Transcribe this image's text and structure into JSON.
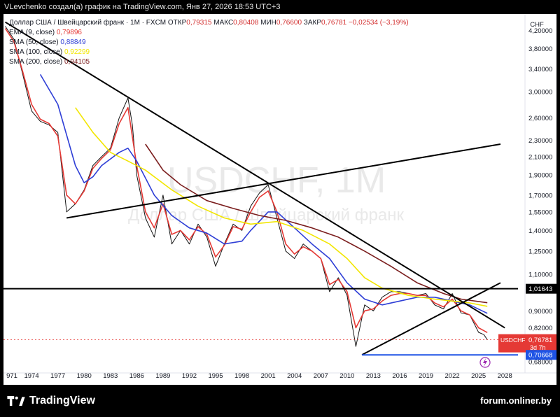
{
  "header": {
    "attribution": "VLevchenko создал(а) график на TradingView.com, Янв 27, 2026 18:53 UTC+3"
  },
  "legend": {
    "instrument": "Доллар США / Швейцарский франк · 1М · FXCM",
    "ohlc": [
      {
        "key": "ОТКР",
        "value": "0,79315"
      },
      {
        "key": "МАКС",
        "value": "0,80408"
      },
      {
        "key": "МИН",
        "value": "0,76600"
      },
      {
        "key": "ЗАКР",
        "value": "0,76781"
      }
    ],
    "change": "−0,02534 (−3,19%)",
    "indicators": [
      {
        "label": "EMA (9, close)",
        "value": "0,79896",
        "color": "#e53935"
      },
      {
        "label": "SMA (50, close)",
        "value": "0,88849",
        "color": "#2f3fd6"
      },
      {
        "label": "SMA (100, close)",
        "value": "0,92299",
        "color": "#f2e600"
      },
      {
        "label": "SMA (200, close)",
        "value": "0,94105",
        "color": "#7b1e1e"
      }
    ]
  },
  "watermark": {
    "symbol": "USDCHF, 1M",
    "name": "Доллар США / Швейцарский франк"
  },
  "price_scale": {
    "currency": "CHF",
    "ticks": [
      "4,20000",
      "3,80000",
      "3,40000",
      "3,00000",
      "2,60000",
      "2,30000",
      "2,10000",
      "1,90000",
      "1,70000",
      "1,55000",
      "1,40000",
      "1,25000",
      "1,10000",
      "0,90000",
      "0,82000",
      "0,68000"
    ],
    "level_label": "1,01643",
    "last_price_label": "0,76781",
    "countdown": "3d 7h",
    "symbol_badge": "USDCHF",
    "support_label": "0,70668"
  },
  "time_scale": {
    "ticks": [
      "971",
      "1974",
      "1977",
      "1980",
      "1983",
      "1986",
      "1989",
      "1992",
      "1995",
      "1998",
      "2001",
      "2004",
      "2007",
      "2010",
      "2013",
      "2016",
      "2019",
      "2022",
      "2025",
      "2028"
    ]
  },
  "footer": {
    "brand": "TradingView",
    "site": "forum.onliner.by"
  },
  "chart_data": {
    "type": "line",
    "title": "Доллар США / Швейцарский франк · 1М · FXCM",
    "y_scale": "log",
    "ylim": [
      0.66,
      4.6
    ],
    "xlim": [
      1970.8,
      2029.5
    ],
    "series": [
      {
        "name": "USDCHF",
        "color": "#141414",
        "points": [
          [
            1971,
            4.3
          ],
          [
            1972,
            4.0
          ],
          [
            1973,
            3.3
          ],
          [
            1974,
            2.7
          ],
          [
            1975,
            2.55
          ],
          [
            1976,
            2.5
          ],
          [
            1977,
            2.4
          ],
          [
            1978,
            1.55
          ],
          [
            1979,
            1.62
          ],
          [
            1980,
            1.75
          ],
          [
            1981,
            2.0
          ],
          [
            1982,
            2.1
          ],
          [
            1983,
            2.2
          ],
          [
            1984,
            2.6
          ],
          [
            1985,
            2.9
          ],
          [
            1985.5,
            2.5
          ],
          [
            1986,
            1.9
          ],
          [
            1987,
            1.5
          ],
          [
            1988,
            1.35
          ],
          [
            1989,
            1.7
          ],
          [
            1990,
            1.3
          ],
          [
            1991,
            1.4
          ],
          [
            1992,
            1.3
          ],
          [
            1993,
            1.45
          ],
          [
            1994,
            1.35
          ],
          [
            1995,
            1.15
          ],
          [
            1996,
            1.3
          ],
          [
            1997,
            1.45
          ],
          [
            1998,
            1.4
          ],
          [
            1999,
            1.6
          ],
          [
            2000,
            1.72
          ],
          [
            2001,
            1.8
          ],
          [
            2002,
            1.5
          ],
          [
            2003,
            1.25
          ],
          [
            2004,
            1.2
          ],
          [
            2005,
            1.3
          ],
          [
            2006,
            1.25
          ],
          [
            2007,
            1.2
          ],
          [
            2008,
            1.0
          ],
          [
            2009,
            1.08
          ],
          [
            2010,
            0.98
          ],
          [
            2011,
            0.74
          ],
          [
            2012,
            0.93
          ],
          [
            2013,
            0.9
          ],
          [
            2014,
            0.97
          ],
          [
            2015,
            1.0
          ],
          [
            2016,
            1.0
          ],
          [
            2017,
            0.99
          ],
          [
            2018,
            0.98
          ],
          [
            2019,
            0.99
          ],
          [
            2020,
            0.93
          ],
          [
            2021,
            0.91
          ],
          [
            2022,
            0.99
          ],
          [
            2023,
            0.89
          ],
          [
            2024,
            0.88
          ],
          [
            2025,
            0.8
          ],
          [
            2025.6,
            0.79
          ],
          [
            2026.0,
            0.768
          ]
        ]
      },
      {
        "name": "EMA (9, close)",
        "color": "#e53935",
        "points": [
          [
            1971,
            4.25
          ],
          [
            1972,
            3.95
          ],
          [
            1973,
            3.35
          ],
          [
            1974,
            2.8
          ],
          [
            1975,
            2.58
          ],
          [
            1976,
            2.52
          ],
          [
            1977,
            2.35
          ],
          [
            1978,
            1.7
          ],
          [
            1979,
            1.62
          ],
          [
            1980,
            1.74
          ],
          [
            1981,
            1.97
          ],
          [
            1982,
            2.08
          ],
          [
            1983,
            2.18
          ],
          [
            1984,
            2.52
          ],
          [
            1985,
            2.75
          ],
          [
            1986,
            2.0
          ],
          [
            1987,
            1.55
          ],
          [
            1988,
            1.42
          ],
          [
            1989,
            1.62
          ],
          [
            1990,
            1.37
          ],
          [
            1991,
            1.4
          ],
          [
            1992,
            1.33
          ],
          [
            1993,
            1.43
          ],
          [
            1994,
            1.37
          ],
          [
            1995,
            1.21
          ],
          [
            1996,
            1.29
          ],
          [
            1997,
            1.43
          ],
          [
            1998,
            1.41
          ],
          [
            1999,
            1.55
          ],
          [
            2000,
            1.68
          ],
          [
            2001,
            1.74
          ],
          [
            2002,
            1.55
          ],
          [
            2003,
            1.3
          ],
          [
            2004,
            1.23
          ],
          [
            2005,
            1.28
          ],
          [
            2006,
            1.25
          ],
          [
            2007,
            1.2
          ],
          [
            2008,
            1.04
          ],
          [
            2009,
            1.07
          ],
          [
            2010,
            1.0
          ],
          [
            2011,
            0.82
          ],
          [
            2012,
            0.9
          ],
          [
            2013,
            0.91
          ],
          [
            2014,
            0.95
          ],
          [
            2015,
            0.98
          ],
          [
            2016,
            0.99
          ],
          [
            2017,
            0.99
          ],
          [
            2018,
            0.98
          ],
          [
            2019,
            0.98
          ],
          [
            2020,
            0.94
          ],
          [
            2021,
            0.92
          ],
          [
            2022,
            0.96
          ],
          [
            2023,
            0.9
          ],
          [
            2024,
            0.88
          ],
          [
            2025,
            0.82
          ],
          [
            2026.0,
            0.799
          ]
        ]
      },
      {
        "name": "SMA (50, close)",
        "color": "#2f3fd6",
        "points": [
          [
            1975,
            3.3
          ],
          [
            1977,
            2.8
          ],
          [
            1979,
            2.0
          ],
          [
            1980,
            1.82
          ],
          [
            1981,
            1.88
          ],
          [
            1982,
            2.0
          ],
          [
            1984,
            2.15
          ],
          [
            1985,
            2.2
          ],
          [
            1986,
            2.05
          ],
          [
            1988,
            1.7
          ],
          [
            1990,
            1.52
          ],
          [
            1992,
            1.42
          ],
          [
            1994,
            1.38
          ],
          [
            1996,
            1.3
          ],
          [
            1998,
            1.32
          ],
          [
            1999,
            1.4
          ],
          [
            2001,
            1.55
          ],
          [
            2002,
            1.55
          ],
          [
            2004,
            1.42
          ],
          [
            2006,
            1.3
          ],
          [
            2008,
            1.2
          ],
          [
            2010,
            1.05
          ],
          [
            2012,
            0.96
          ],
          [
            2014,
            0.93
          ],
          [
            2016,
            0.95
          ],
          [
            2018,
            0.97
          ],
          [
            2020,
            0.97
          ],
          [
            2022,
            0.95
          ],
          [
            2024,
            0.93
          ],
          [
            2026.0,
            0.888
          ]
        ]
      },
      {
        "name": "SMA (100, close)",
        "color": "#f2e600",
        "points": [
          [
            1979,
            2.75
          ],
          [
            1981,
            2.4
          ],
          [
            1983,
            2.15
          ],
          [
            1985,
            2.05
          ],
          [
            1987,
            1.95
          ],
          [
            1990,
            1.75
          ],
          [
            1993,
            1.6
          ],
          [
            1996,
            1.5
          ],
          [
            1999,
            1.45
          ],
          [
            2002,
            1.47
          ],
          [
            2005,
            1.4
          ],
          [
            2008,
            1.3
          ],
          [
            2010,
            1.2
          ],
          [
            2012,
            1.08
          ],
          [
            2014,
            1.02
          ],
          [
            2017,
            0.98
          ],
          [
            2020,
            0.96
          ],
          [
            2022,
            0.95
          ],
          [
            2024,
            0.94
          ],
          [
            2026.0,
            0.923
          ]
        ]
      },
      {
        "name": "SMA (200, close)",
        "color": "#7b1e1e",
        "points": [
          [
            1987,
            2.25
          ],
          [
            1989,
            1.95
          ],
          [
            1991,
            1.8
          ],
          [
            1994,
            1.65
          ],
          [
            1997,
            1.58
          ],
          [
            2000,
            1.52
          ],
          [
            2003,
            1.48
          ],
          [
            2006,
            1.42
          ],
          [
            2009,
            1.35
          ],
          [
            2012,
            1.25
          ],
          [
            2015,
            1.15
          ],
          [
            2018,
            1.05
          ],
          [
            2021,
            0.99
          ],
          [
            2023,
            0.96
          ],
          [
            2026.0,
            0.941
          ]
        ]
      }
    ],
    "trendlines": [
      {
        "name": "long-term downtrend",
        "from": [
          1971,
          4.4
        ],
        "to": [
          2028.0,
          0.82
        ]
      },
      {
        "name": "long-term uptrend",
        "from": [
          1978,
          1.5
        ],
        "to": [
          2027.5,
          2.25
        ]
      },
      {
        "name": "support rising",
        "from": [
          2011.7,
          0.707
        ],
        "to": [
          2027.5,
          1.05
        ]
      },
      {
        "name": "horizontal level",
        "from": [
          1970.8,
          1.01643
        ],
        "to": [
          2029.5,
          1.01643
        ]
      },
      {
        "name": "support horizontal",
        "from": [
          2011.7,
          0.70668
        ],
        "to": [
          2029.5,
          0.70668
        ]
      }
    ],
    "xlabel": "",
    "ylabel": "",
    "grid": false
  }
}
